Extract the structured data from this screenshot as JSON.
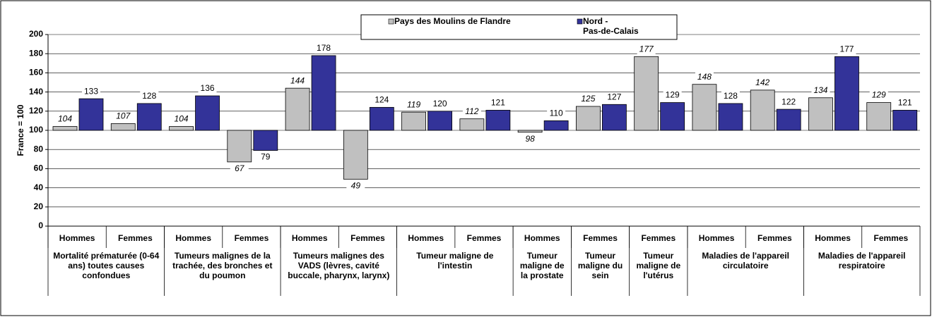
{
  "chart_data": {
    "type": "bar",
    "ylabel": "France = 100",
    "categories": [
      "Hommes",
      "Femmes",
      "Hommes",
      "Femmes",
      "Hommes",
      "Femmes",
      "Hommes",
      "Femmes",
      "Hommes",
      "Femmes",
      "Femmes",
      "Hommes",
      "Femmes",
      "Hommes",
      "Femmes"
    ],
    "groups": [
      {
        "label": "Mortalité prématurée (0-64 ans) toutes causes confondues",
        "span": 2
      },
      {
        "label": "Tumeurs malignes de la trachée, des bronches et du poumon",
        "span": 2
      },
      {
        "label": "Tumeurs malignes des VADS (lèvres, cavité buccale, pharynx, larynx)",
        "span": 2
      },
      {
        "label": "Tumeur maligne de l'intestin",
        "span": 2
      },
      {
        "label": "Tumeur maligne de la prostate",
        "span": 1
      },
      {
        "label": "Tumeur maligne du sein",
        "span": 1
      },
      {
        "label": "Tumeur maligne de l'utérus",
        "span": 1
      },
      {
        "label": "Maladies de l'appareil circulatoire",
        "span": 2
      },
      {
        "label": "Maladies de l'appareil respiratoire",
        "span": 2
      }
    ],
    "series": [
      {
        "name": "Pays des Moulins de Flandre",
        "color": "#c0c0c0",
        "values": [
          104,
          107,
          104,
          67,
          144,
          49,
          119,
          112,
          98,
          125,
          177,
          148,
          142,
          134,
          129
        ]
      },
      {
        "name": "Nord -\nPas-de-Calais",
        "color": "#333399",
        "values": [
          133,
          128,
          136,
          79,
          178,
          124,
          120,
          121,
          110,
          127,
          129,
          128,
          122,
          177,
          121
        ]
      }
    ],
    "bar_base": 100,
    "ylim": [
      0,
      200
    ],
    "yticks": [
      0,
      20,
      40,
      60,
      80,
      100,
      120,
      140,
      160,
      180,
      200
    ],
    "grid": true
  }
}
